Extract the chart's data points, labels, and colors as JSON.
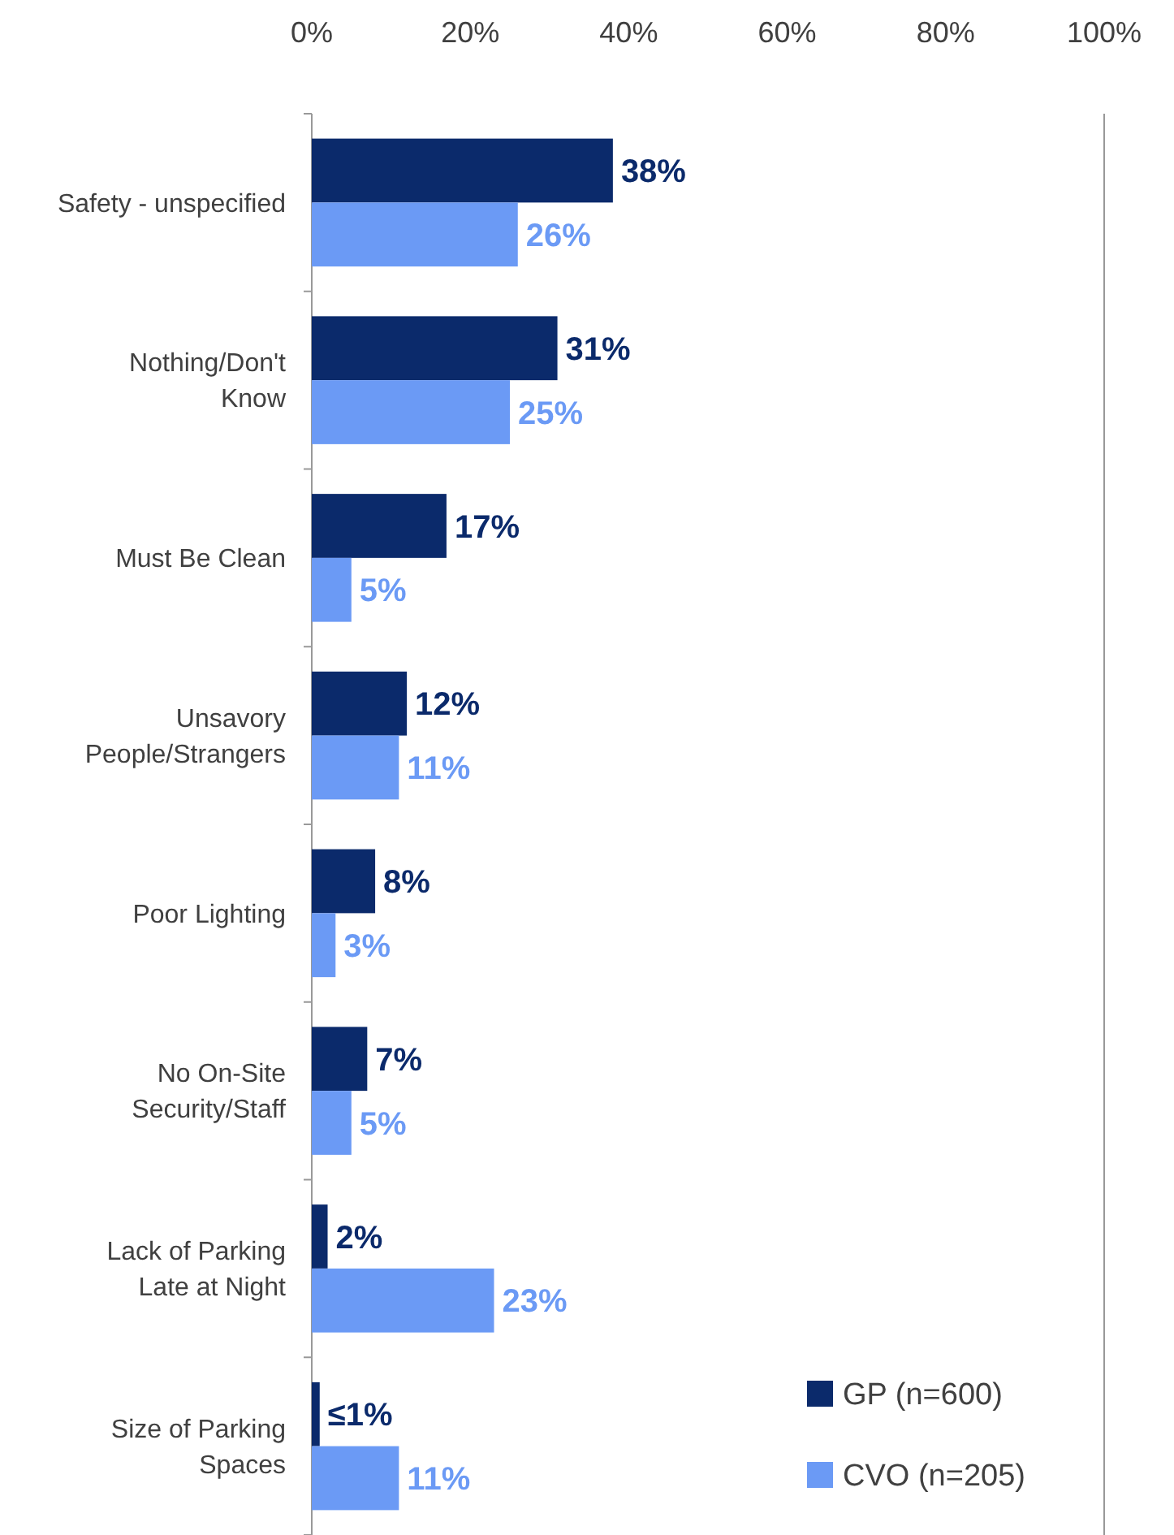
{
  "chart_data": {
    "type": "bar",
    "orientation": "horizontal",
    "categories": [
      "Safety - unspecified",
      "Nothing/Don't\nKnow",
      "Must Be Clean",
      "Unsavory\nPeople/Strangers",
      "Poor Lighting",
      "No On-Site\nSecurity/Staff",
      "Lack of Parking\nLate at Night",
      "Size of Parking\nSpaces"
    ],
    "series": [
      {
        "name": "GP (n=600)",
        "color": "#0b2a6b",
        "values": [
          38,
          31,
          17,
          12,
          8,
          7,
          2,
          1
        ],
        "value_labels": [
          "38%",
          "31%",
          "17%",
          "12%",
          "8%",
          "7%",
          "2%",
          "≤1%"
        ]
      },
      {
        "name": "CVO (n=205)",
        "color": "#6b9af5",
        "values": [
          26,
          25,
          5,
          11,
          3,
          5,
          23,
          11
        ],
        "value_labels": [
          "26%",
          "25%",
          "5%",
          "11%",
          "3%",
          "5%",
          "23%",
          "11%"
        ]
      }
    ],
    "xlim": [
      0,
      100
    ],
    "xticks": [
      {
        "value": 0,
        "label": "0%"
      },
      {
        "value": 20,
        "label": "20%"
      },
      {
        "value": 40,
        "label": "40%"
      },
      {
        "value": 60,
        "label": "60%"
      },
      {
        "value": 80,
        "label": "80%"
      },
      {
        "value": 100,
        "label": "100%"
      }
    ],
    "legend": "bottom right",
    "grid": false
  }
}
